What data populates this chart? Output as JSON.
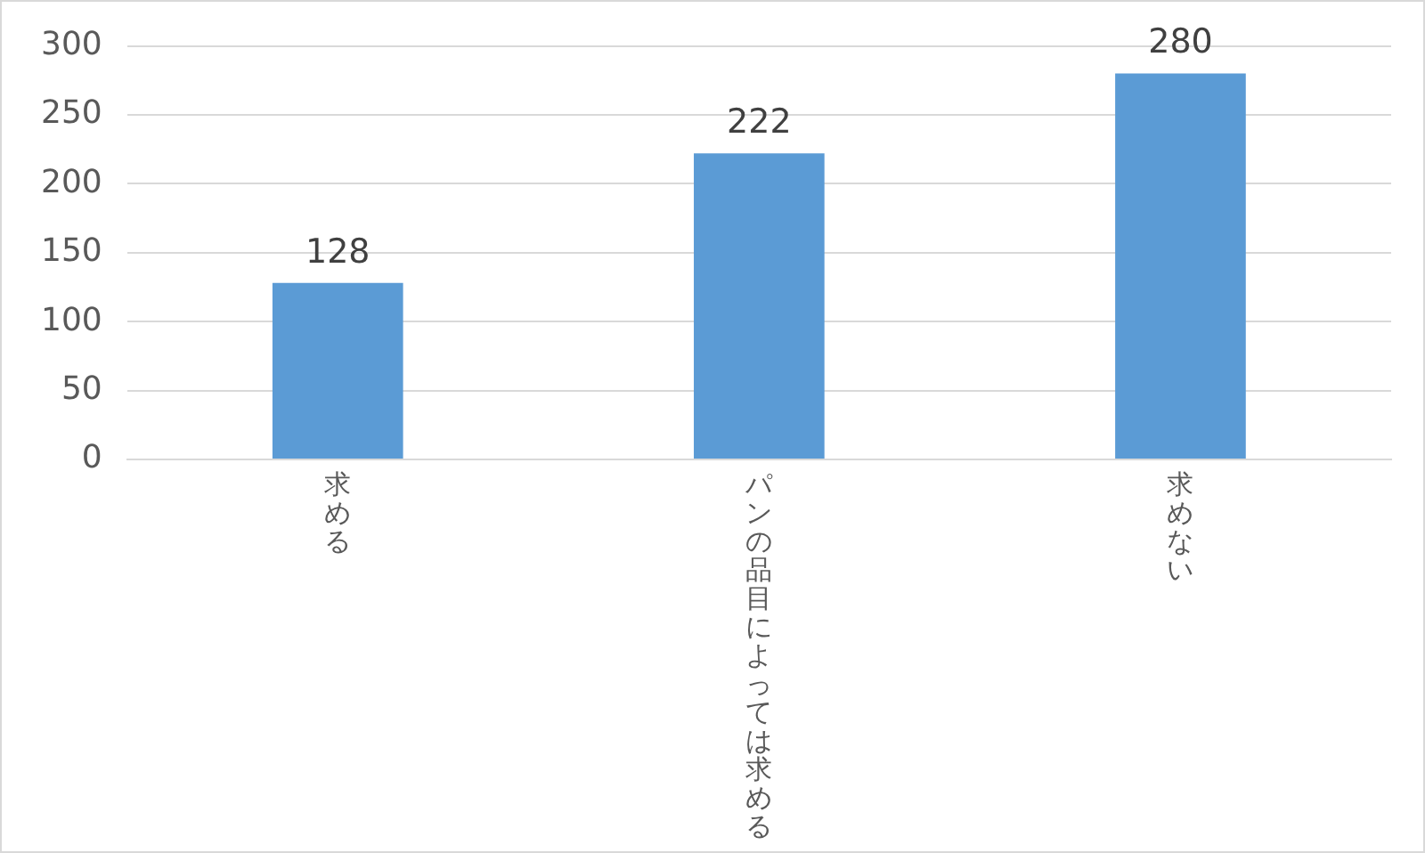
{
  "chart_data": {
    "type": "bar",
    "categories": [
      "求める",
      "パンの品目によっては求める",
      "求めない"
    ],
    "values": [
      128,
      222,
      280
    ],
    "color": "#5b9bd5",
    "ylim": [
      0,
      300
    ],
    "yticks": [
      0,
      50,
      100,
      150,
      200,
      250,
      300
    ],
    "grid": "y",
    "data_labels": true,
    "legend": false
  }
}
